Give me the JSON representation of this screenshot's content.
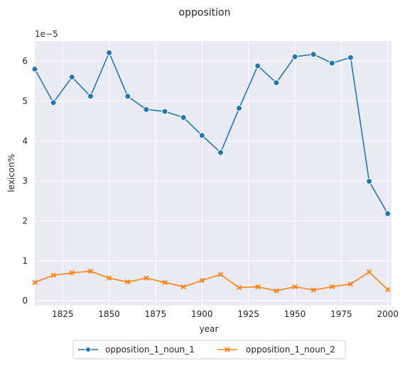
{
  "chart_data": {
    "type": "line",
    "title": "opposition",
    "xlabel": "year",
    "ylabel": "lexicon%",
    "y_scale_label": "1e−5",
    "x_ticks": [
      1825,
      1850,
      1875,
      1900,
      1925,
      1950,
      1975,
      2000
    ],
    "y_ticks": [
      0,
      1,
      2,
      3,
      4,
      5,
      6
    ],
    "xlim": [
      1810,
      2002
    ],
    "ylim": [
      -0.12,
      6.5
    ],
    "grid": true,
    "legend_position": "bottom-center",
    "x": [
      1810,
      1820,
      1830,
      1840,
      1850,
      1860,
      1870,
      1880,
      1890,
      1900,
      1910,
      1920,
      1930,
      1940,
      1950,
      1960,
      1970,
      1980,
      1990,
      2000
    ],
    "series": [
      {
        "name": "opposition_1_noun_1",
        "color": "#1f77b4",
        "marker": "circle",
        "values": [
          5.8,
          4.96,
          5.6,
          5.12,
          6.21,
          5.12,
          4.79,
          4.74,
          4.59,
          4.14,
          3.71,
          4.82,
          5.88,
          5.46,
          6.11,
          6.17,
          5.95,
          6.09,
          2.99,
          2.18
        ]
      },
      {
        "name": "opposition_1_noun_2",
        "color": "#ff7f0e",
        "marker": "x",
        "values": [
          0.46,
          0.64,
          0.7,
          0.74,
          0.57,
          0.47,
          0.57,
          0.46,
          0.35,
          0.51,
          0.66,
          0.33,
          0.35,
          0.25,
          0.35,
          0.27,
          0.35,
          0.42,
          0.72,
          0.28
        ]
      }
    ]
  }
}
